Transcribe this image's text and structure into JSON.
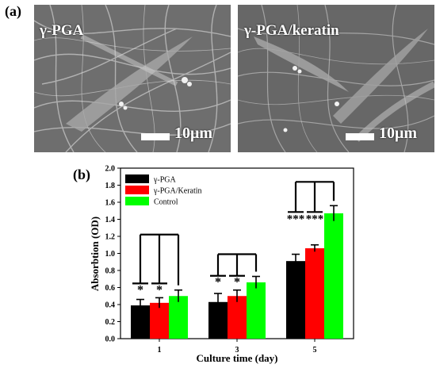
{
  "figure": {
    "panel_a_label": "(a)",
    "panel_b_label": "(b)",
    "images": [
      {
        "title": "γ-PGA",
        "scale_label": "10μm"
      },
      {
        "title": "γ-PGA/keratin",
        "scale_label": "10μm"
      }
    ]
  },
  "chart_data": {
    "type": "bar",
    "categories": [
      "1",
      "3",
      "5"
    ],
    "xlabel": "Culture time (day)",
    "ylabel": "Absorbtion (OD)",
    "ylim": [
      0.0,
      2.0
    ],
    "yticks": [
      "0.0",
      "0.2",
      "0.4",
      "0.6",
      "0.8",
      "1.0",
      "1.2",
      "1.4",
      "1.6",
      "1.8",
      "2.0"
    ],
    "legend_position": "top-left",
    "series": [
      {
        "name": "γ-PGA",
        "color": "#000000",
        "values": [
          0.39,
          0.43,
          0.91
        ],
        "errors": [
          0.07,
          0.1,
          0.08
        ]
      },
      {
        "name": "γ-PGA/Keratin",
        "color": "#ff0000",
        "values": [
          0.42,
          0.5,
          1.06
        ],
        "errors": [
          0.06,
          0.07,
          0.04
        ]
      },
      {
        "name": "Control",
        "color": "#00ff00",
        "values": [
          0.5,
          0.66,
          1.47
        ],
        "errors": [
          0.07,
          0.07,
          0.09
        ]
      }
    ],
    "significance": [
      {
        "category_index": 0,
        "marks": [
          "*",
          "*"
        ]
      },
      {
        "category_index": 1,
        "marks": [
          "*",
          "*"
        ]
      },
      {
        "category_index": 2,
        "marks": [
          "***",
          "***"
        ]
      }
    ]
  }
}
